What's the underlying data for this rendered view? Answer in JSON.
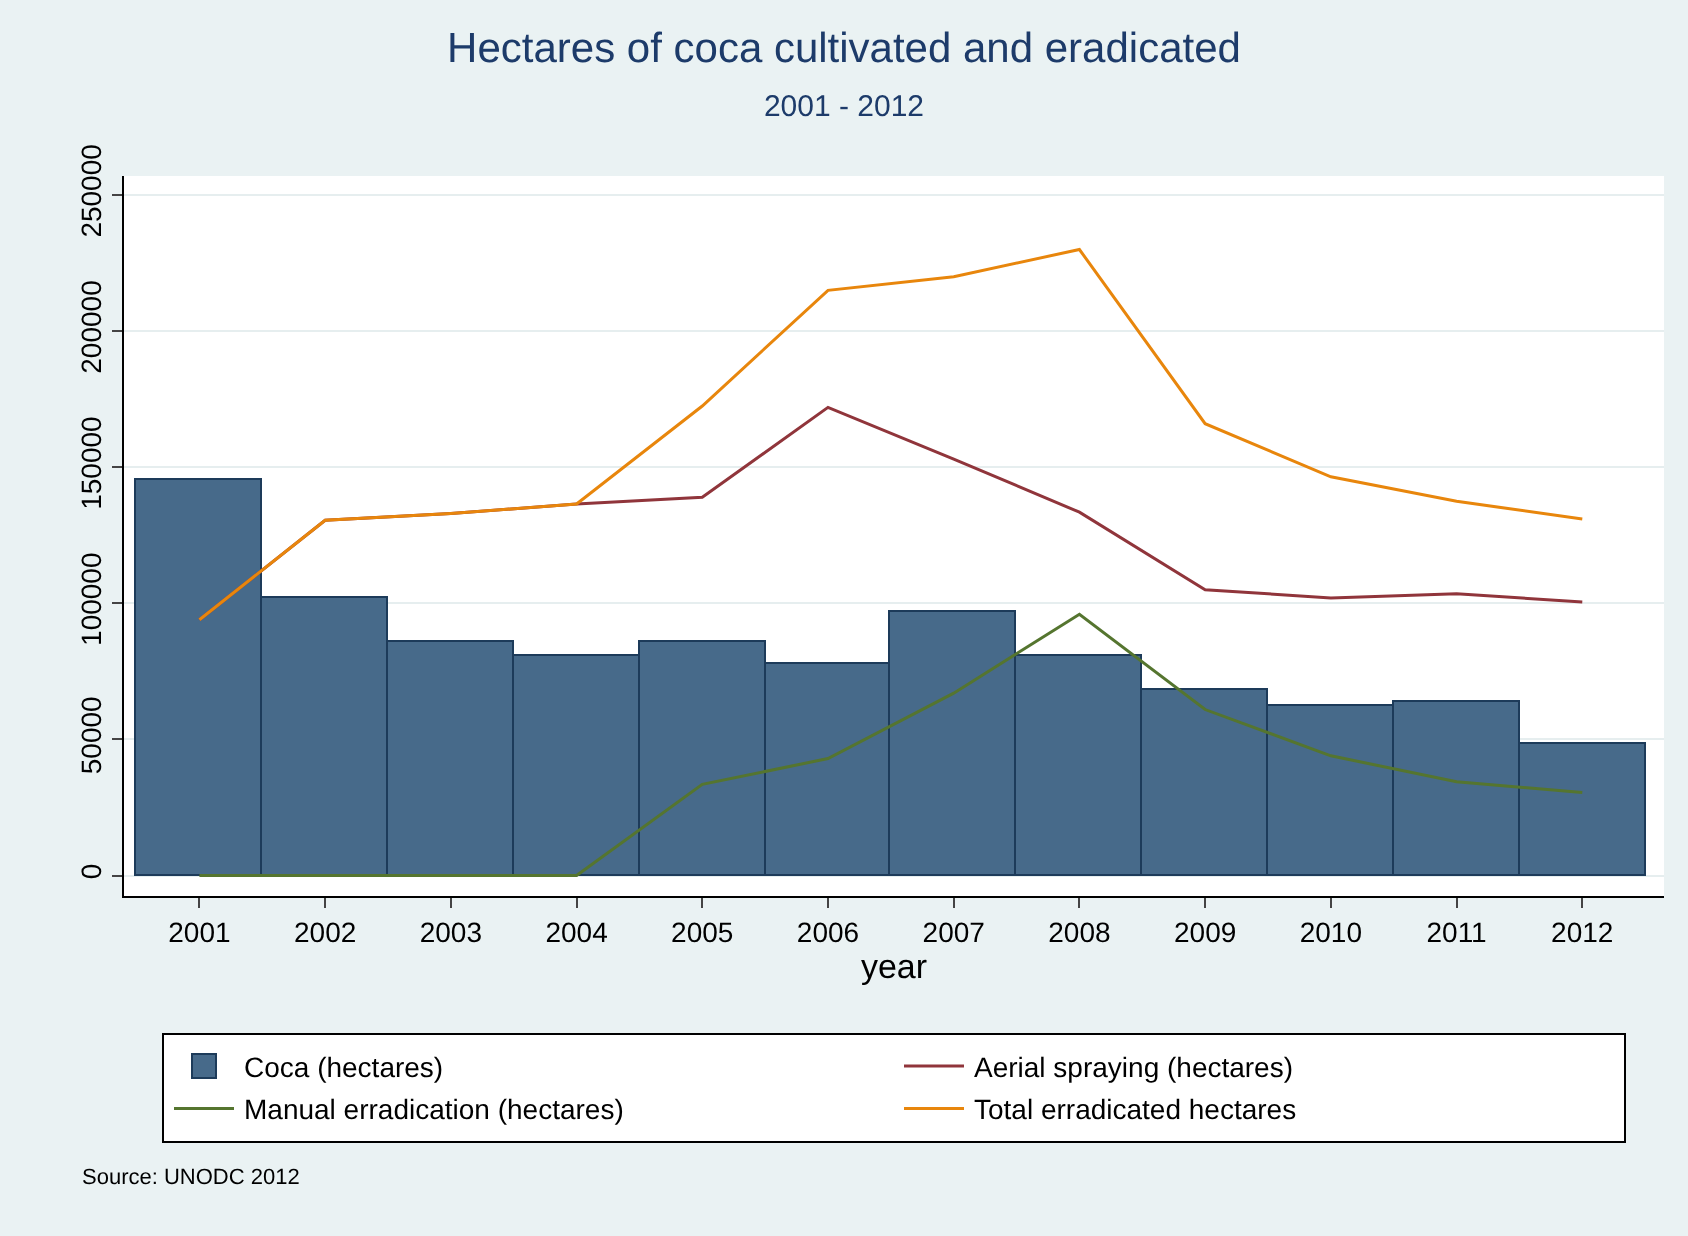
{
  "chart_data": {
    "type": "bar",
    "title": "Hectares of coca cultivated and eradicated",
    "subtitle": "2001 - 2012",
    "xlabel": "year",
    "categories": [
      "2001",
      "2002",
      "2003",
      "2004",
      "2005",
      "2006",
      "2007",
      "2008",
      "2009",
      "2010",
      "2011",
      "2012"
    ],
    "series": [
      {
        "name": "Coca (hectares)",
        "color": "#476a8a",
        "values": [
          145000,
          102000,
          86000,
          80500,
          85500,
          78000,
          97000,
          81000,
          68000,
          62000,
          64000,
          48000
        ]
      },
      {
        "name": "Aerial spraying (hectares)",
        "type": "line",
        "color": "#90353b",
        "values": [
          94000,
          130500,
          133000,
          136500,
          139000,
          172000,
          153000,
          133500,
          105000,
          102000,
          103500,
          100500
        ]
      },
      {
        "name": "Manual erradication (hectares)",
        "type": "line",
        "color": "#55752f",
        "values": [
          0,
          0,
          0,
          0,
          33500,
          43000,
          67000,
          96000,
          61000,
          44000,
          34500,
          30500
        ]
      },
      {
        "name": "Total erradicated hectares",
        "type": "line",
        "color": "#e8860c",
        "values": [
          94000,
          130500,
          133000,
          136500,
          172500,
          215000,
          220000,
          230000,
          166000,
          146500,
          137500,
          131000
        ]
      }
    ],
    "ylim": [
      -7500,
      257000
    ],
    "yticks": [
      0,
      50000,
      100000,
      150000,
      200000,
      250000
    ],
    "grid": "y",
    "legend": "bottom",
    "annotations": [
      "Source: UNODC 2012"
    ]
  }
}
